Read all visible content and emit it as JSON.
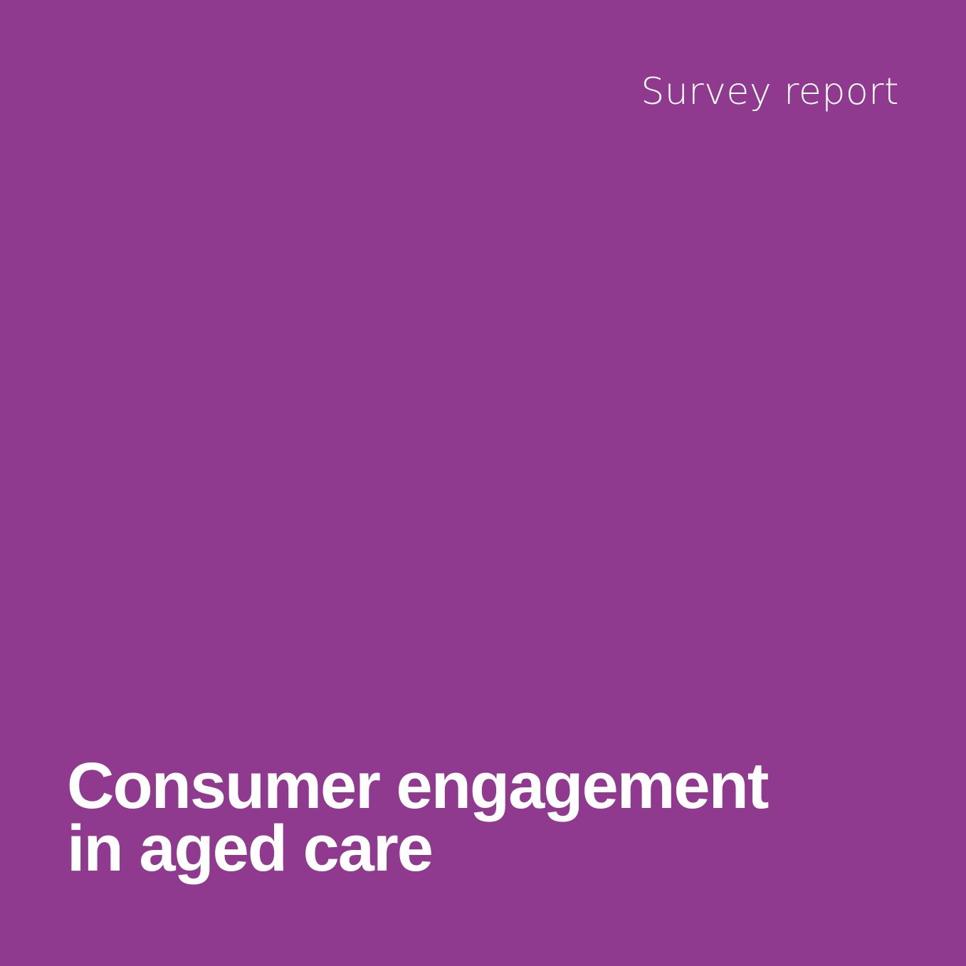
{
  "cover": {
    "report_type": "Survey report",
    "title_lines": [
      "Consumer engagement",
      "in aged care"
    ]
  },
  "colors": {
    "background": "#8f398f",
    "text": "#ffffff"
  }
}
